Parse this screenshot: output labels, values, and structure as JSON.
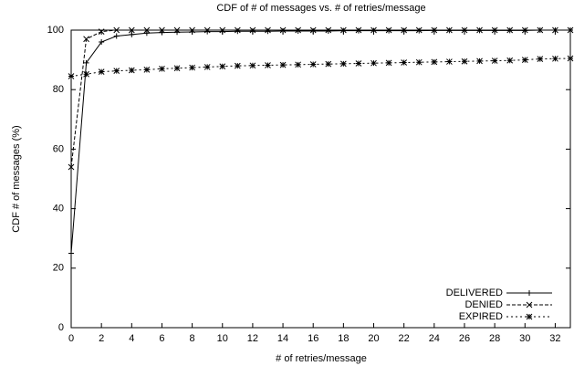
{
  "chart_data": {
    "type": "line",
    "title": "CDF of # of messages vs. # of retries/message",
    "x_label": "# of retries/message",
    "y_label": "CDF # of messages (%)",
    "x": [
      0,
      1,
      2,
      3,
      4,
      5,
      6,
      7,
      8,
      9,
      10,
      11,
      12,
      13,
      14,
      15,
      16,
      17,
      18,
      19,
      20,
      21,
      22,
      23,
      24,
      25,
      26,
      27,
      28,
      29,
      30,
      31,
      32,
      33
    ],
    "series": [
      {
        "name": "DELIVERED",
        "color": "#000000",
        "dash": "solid",
        "marker": "+",
        "values": [
          25,
          89,
          96,
          98,
          98.5,
          99,
          99.2,
          99.3,
          99.4,
          99.5,
          99.5,
          99.6,
          99.6,
          99.6,
          99.7,
          99.7,
          99.7,
          99.7,
          99.8,
          99.8,
          99.8,
          99.8,
          99.8,
          99.8,
          99.9,
          99.9,
          99.9,
          99.9,
          99.9,
          99.9,
          99.9,
          100,
          100,
          100
        ]
      },
      {
        "name": "DENIED",
        "color": "#000000",
        "dash": "dashed",
        "marker": "x",
        "values": [
          54,
          97,
          99.5,
          100,
          100,
          100,
          100,
          100,
          100,
          100,
          100,
          100,
          100,
          100,
          100,
          100,
          100,
          100,
          100,
          100,
          100,
          100,
          100,
          100,
          100,
          100,
          100,
          100,
          100,
          100,
          100,
          100,
          100,
          100
        ]
      },
      {
        "name": "EXPIRED",
        "color": "#000000",
        "dash": "dotted",
        "marker": "*",
        "values": [
          84.5,
          85.2,
          86,
          86.3,
          86.5,
          86.7,
          87,
          87.2,
          87.4,
          87.6,
          87.8,
          88,
          88.1,
          88.2,
          88.3,
          88.4,
          88.5,
          88.6,
          88.7,
          88.8,
          88.9,
          89,
          89.1,
          89.2,
          89.3,
          89.4,
          89.5,
          89.6,
          89.7,
          89.8,
          90,
          90.3,
          90.4,
          90.5
        ]
      }
    ],
    "xlim": [
      0,
      33
    ],
    "xticks": [
      0,
      2,
      4,
      6,
      8,
      10,
      12,
      14,
      16,
      18,
      20,
      22,
      24,
      26,
      28,
      30,
      32
    ],
    "ylim": [
      0,
      100
    ],
    "yticks": [
      0,
      20,
      40,
      60,
      80,
      100
    ],
    "legend": "lower right"
  }
}
